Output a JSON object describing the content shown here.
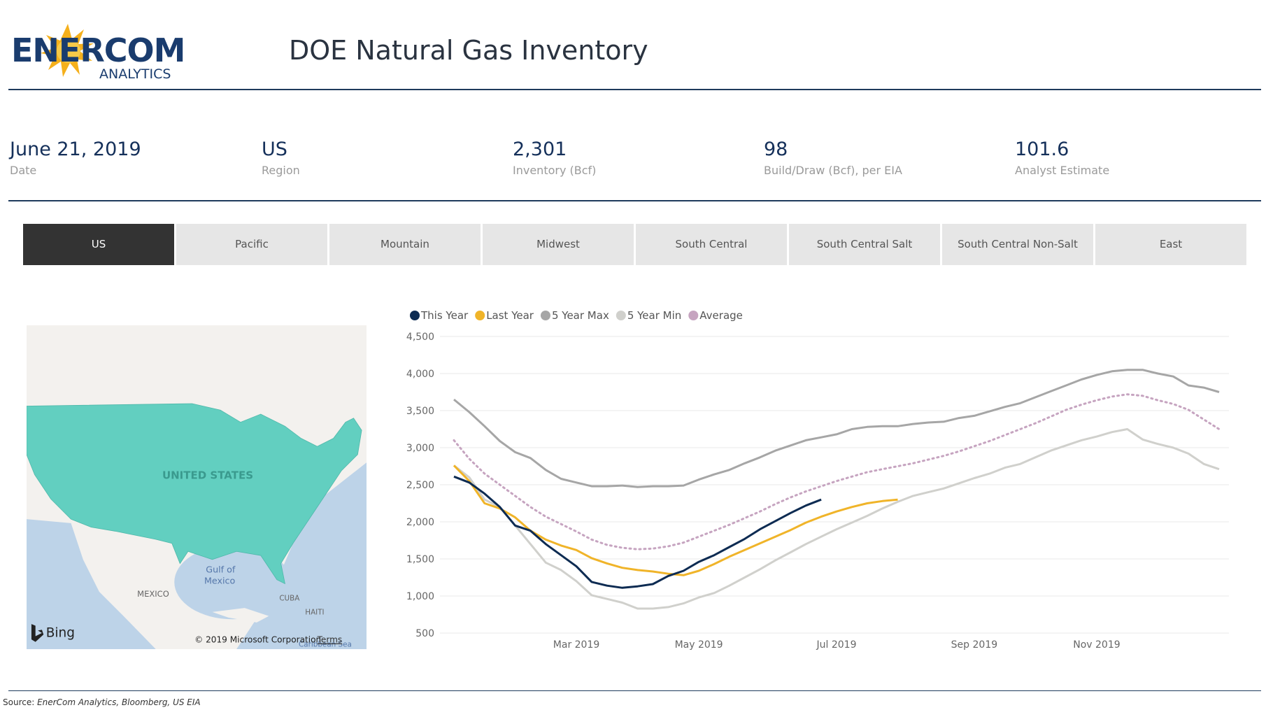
{
  "logo": {
    "name": "ENERCOM",
    "sub": "ANALYTICS"
  },
  "header": {
    "title": "DOE Natural Gas Inventory"
  },
  "kpis": [
    {
      "value": "June 21, 2019",
      "label": "Date"
    },
    {
      "value": "US",
      "label": "Region"
    },
    {
      "value": "2,301",
      "label": "Inventory (Bcf)"
    },
    {
      "value": "98",
      "label": "Build/Draw (Bcf), per EIA"
    },
    {
      "value": "101.6",
      "label": "Analyst Estimate"
    }
  ],
  "tabs": [
    "US",
    "Pacific",
    "Mountain",
    "Midwest",
    "South Central",
    "South Central Salt",
    "South Central Non-Salt",
    "East"
  ],
  "map": {
    "country": "UNITED STATES",
    "gulf": [
      "Gulf of",
      "Mexico"
    ],
    "labels": [
      "MEXICO",
      "CUBA",
      "HAITI",
      "Caribbean Sea"
    ],
    "brand": "Bing",
    "copyright": "© 2019 Microsoft Corporation",
    "terms": "Terms"
  },
  "chart_data": {
    "type": "line",
    "categories": [
      null,
      null,
      null,
      null,
      null,
      null,
      null,
      null,
      "Mar 2019",
      null,
      null,
      null,
      null,
      null,
      null,
      null,
      "May 2019",
      null,
      null,
      null,
      null,
      null,
      null,
      null,
      null,
      "Jul 2019",
      null,
      null,
      null,
      null,
      null,
      null,
      null,
      null,
      "Sep 2019",
      null,
      null,
      null,
      null,
      null,
      null,
      null,
      "Nov 2019",
      null,
      null,
      null,
      null,
      null,
      null,
      null,
      null
    ],
    "ylim": [
      500,
      4500
    ],
    "yticks": [
      {
        "value": 500,
        "label": "500"
      },
      {
        "value": 1000,
        "label": "1,000"
      },
      {
        "value": 1500,
        "label": "1,500"
      },
      {
        "value": 2000,
        "label": "2,000"
      },
      {
        "value": 2500,
        "label": "2,500"
      },
      {
        "value": 3000,
        "label": "3,000"
      },
      {
        "value": 3500,
        "label": "3,500"
      },
      {
        "value": 4000,
        "label": "4,000"
      },
      {
        "value": 4500,
        "label": "4,500"
      }
    ],
    "grid": true,
    "series": [
      {
        "name": "This Year",
        "color": "#0d2b52",
        "style": "solid",
        "values": [
          2610,
          2530,
          2380,
          2200,
          1950,
          1880,
          1700,
          1550,
          1400,
          1190,
          1140,
          1110,
          1130,
          1160,
          1270,
          1340,
          1460,
          1550,
          1660,
          1770,
          1900,
          2010,
          2120,
          2220,
          2300,
          null,
          null,
          null,
          null,
          null,
          null,
          null,
          null,
          null,
          null,
          null,
          null,
          null,
          null,
          null,
          null,
          null,
          null,
          null,
          null,
          null,
          null,
          null,
          null,
          null,
          null
        ]
      },
      {
        "name": "Last Year",
        "color": "#f0b429",
        "style": "solid",
        "values": [
          2760,
          2550,
          2250,
          2180,
          2060,
          1880,
          1760,
          1680,
          1620,
          1510,
          1440,
          1380,
          1350,
          1330,
          1300,
          1280,
          1340,
          1430,
          1530,
          1620,
          1710,
          1800,
          1890,
          1990,
          2070,
          2140,
          2200,
          2250,
          2280,
          2300,
          null,
          null,
          null,
          null,
          null,
          null,
          null,
          null,
          null,
          null,
          null,
          null,
          null,
          null,
          null,
          null,
          null,
          null,
          null,
          null,
          null
        ]
      },
      {
        "name": "5 Year Max",
        "color": "#a6a6a6",
        "style": "solid",
        "values": [
          3650,
          3480,
          3290,
          3090,
          2940,
          2860,
          2700,
          2580,
          2530,
          2480,
          2480,
          2490,
          2470,
          2480,
          2480,
          2490,
          2570,
          2640,
          2700,
          2790,
          2870,
          2960,
          3030,
          3100,
          3140,
          3180,
          3250,
          3280,
          3290,
          3290,
          3320,
          3340,
          3350,
          3400,
          3430,
          3490,
          3550,
          3600,
          3680,
          3760,
          3840,
          3920,
          3980,
          4030,
          4050,
          4050,
          4000,
          3960,
          3840,
          3810,
          3750
        ]
      },
      {
        "name": "5 Year Min",
        "color": "#d0d0cc",
        "style": "solid",
        "values": [
          2760,
          2600,
          2300,
          2200,
          1950,
          1700,
          1450,
          1350,
          1200,
          1010,
          960,
          910,
          830,
          830,
          850,
          900,
          980,
          1040,
          1140,
          1250,
          1360,
          1480,
          1590,
          1700,
          1800,
          1900,
          1990,
          2080,
          2180,
          2270,
          2350,
          2400,
          2450,
          2520,
          2590,
          2650,
          2730,
          2780,
          2870,
          2960,
          3030,
          3100,
          3150,
          3210,
          3250,
          3110,
          3050,
          3000,
          2920,
          2780,
          2710
        ]
      },
      {
        "name": "Average",
        "color": "#c6a4c0",
        "style": "dotted",
        "values": [
          3100,
          2850,
          2650,
          2500,
          2350,
          2200,
          2070,
          1970,
          1870,
          1760,
          1690,
          1650,
          1630,
          1640,
          1670,
          1720,
          1800,
          1880,
          1960,
          2050,
          2140,
          2240,
          2330,
          2410,
          2480,
          2550,
          2610,
          2670,
          2710,
          2750,
          2790,
          2840,
          2890,
          2950,
          3020,
          3090,
          3170,
          3250,
          3330,
          3420,
          3510,
          3580,
          3640,
          3690,
          3720,
          3700,
          3640,
          3590,
          3510,
          3380,
          3250
        ]
      }
    ]
  },
  "source": {
    "label": "Source:",
    "text": "EnerCom Analytics, Bloomberg, US EIA"
  }
}
